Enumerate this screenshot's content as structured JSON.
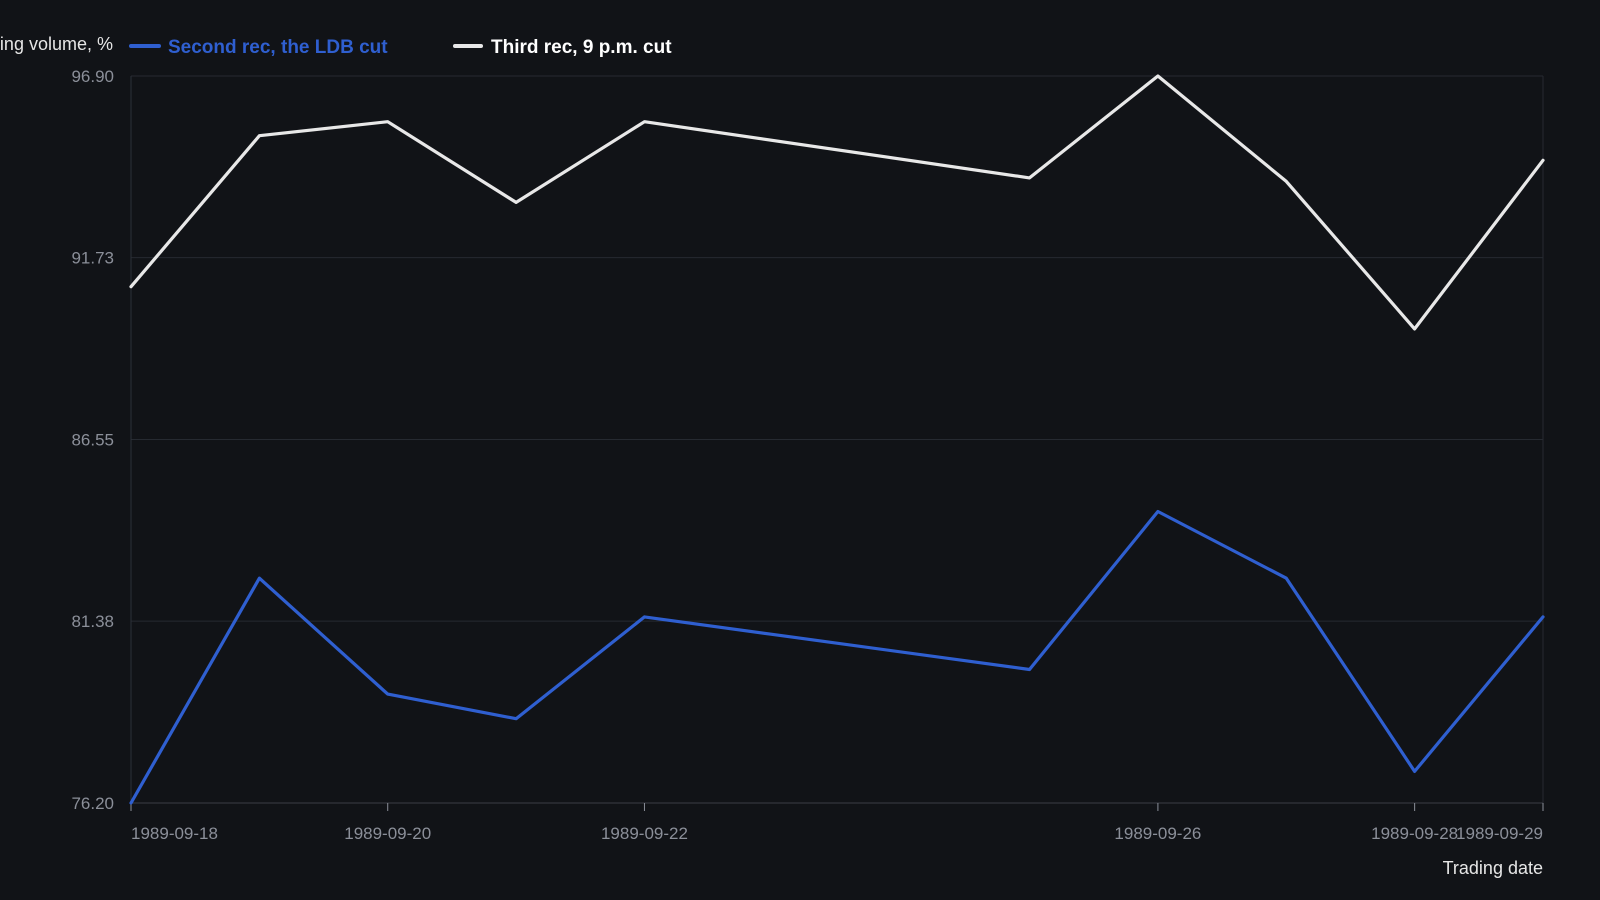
{
  "chart_data": {
    "type": "line",
    "title": "",
    "ylabel": "Trading volume, %",
    "xlabel": "Trading date",
    "ylim": [
      76.2,
      96.9
    ],
    "yticks": [
      "76.20",
      "81.38",
      "86.55",
      "91.73",
      "96.90"
    ],
    "xlim": [
      "1989-09-18",
      "1989-09-29"
    ],
    "xticks": [
      "1989-09-18",
      "1989-09-20",
      "1989-09-22",
      "1989-09-26",
      "1989-09-28",
      "1989-09-29"
    ],
    "grid": true,
    "legend_position": "top-left",
    "x": [
      "1989-09-18",
      "1989-09-19",
      "1989-09-20",
      "1989-09-21",
      "1989-09-22",
      "1989-09-25",
      "1989-09-26",
      "1989-09-27",
      "1989-09-28",
      "1989-09-29"
    ],
    "series": [
      {
        "name": "Second rec, the LDB cut",
        "color": "#2f5fd0",
        "values": [
          76.2,
          82.6,
          79.3,
          78.6,
          81.5,
          80.0,
          84.5,
          82.6,
          77.1,
          81.5
        ]
      },
      {
        "name": "Third rec, 9 p.m. cut",
        "color": "#e8e8e8",
        "values": [
          90.9,
          95.2,
          95.6,
          93.3,
          95.6,
          94.0,
          96.9,
          93.9,
          89.7,
          94.5
        ]
      }
    ]
  }
}
